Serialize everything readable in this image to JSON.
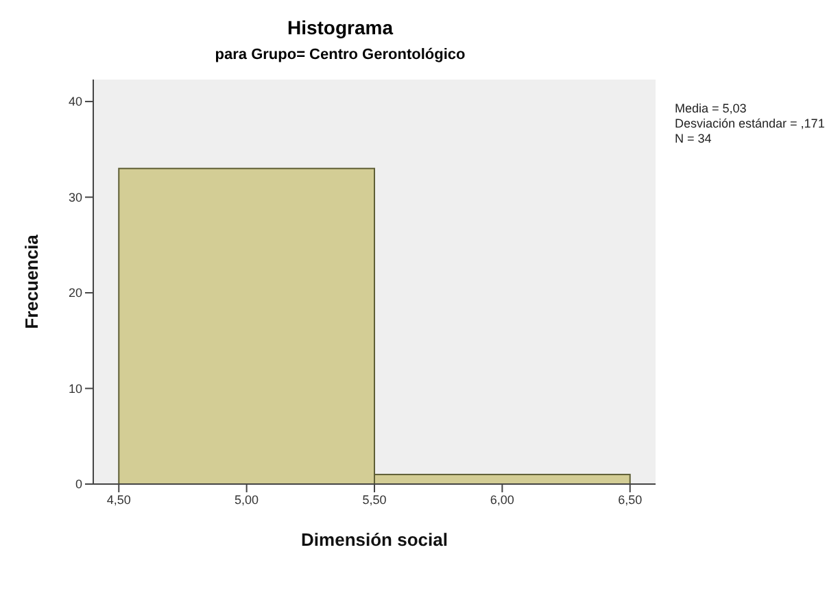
{
  "chart_data": {
    "type": "histogram",
    "title": "Histograma",
    "subtitle": "para Grupo= Centro Gerontológico",
    "xlabel": "Dimensión social",
    "ylabel": "Frecuencia",
    "bins": [
      4.5,
      5.5,
      6.5
    ],
    "values": [
      33,
      1
    ],
    "color": "#d3cd95",
    "xlim": [
      4.4,
      6.6
    ],
    "xticks": [
      {
        "value": 4.5,
        "label": "4,50"
      },
      {
        "value": 5,
        "label": "5,00"
      },
      {
        "value": 5.5,
        "label": "5,50"
      },
      {
        "value": 6,
        "label": "6,00"
      },
      {
        "value": 6.5,
        "label": "6,50"
      }
    ],
    "ylim": [
      0,
      42.3
    ],
    "yticks": [
      0,
      10,
      20,
      30,
      40
    ],
    "grid": false,
    "annotations": [
      "Media = 5,03",
      "Desviación estándar = ,171",
      "N = 34"
    ]
  }
}
